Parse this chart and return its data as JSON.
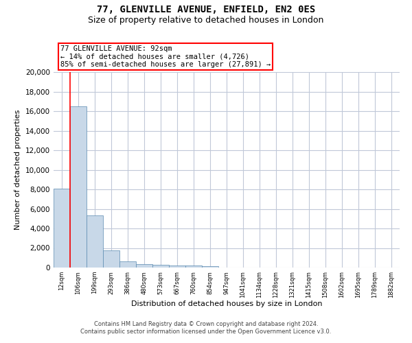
{
  "title_line1": "77, GLENVILLE AVENUE, ENFIELD, EN2 0ES",
  "title_line2": "Size of property relative to detached houses in London",
  "xlabel": "Distribution of detached houses by size in London",
  "ylabel": "Number of detached properties",
  "categories": [
    "12sqm",
    "106sqm",
    "199sqm",
    "293sqm",
    "386sqm",
    "480sqm",
    "573sqm",
    "667sqm",
    "760sqm",
    "854sqm",
    "947sqm",
    "1041sqm",
    "1134sqm",
    "1228sqm",
    "1321sqm",
    "1415sqm",
    "1508sqm",
    "1602sqm",
    "1695sqm",
    "1789sqm",
    "1882sqm"
  ],
  "values": [
    8100,
    16500,
    5300,
    1750,
    650,
    350,
    280,
    200,
    180,
    150,
    0,
    0,
    0,
    0,
    0,
    0,
    0,
    0,
    0,
    0,
    0
  ],
  "bar_color": "#c8d8e8",
  "bar_edge_color": "#5a8ab0",
  "grid_color": "#c0c8d8",
  "background_color": "#ffffff",
  "annotation_line1": "77 GLENVILLE AVENUE: 92sqm",
  "annotation_line2": "← 14% of detached houses are smaller (4,726)",
  "annotation_line3": "85% of semi-detached houses are larger (27,891) →",
  "ylim": [
    0,
    20000
  ],
  "yticks": [
    0,
    2000,
    4000,
    6000,
    8000,
    10000,
    12000,
    14000,
    16000,
    18000,
    20000
  ],
  "footer_line1": "Contains HM Land Registry data © Crown copyright and database right 2024.",
  "footer_line2": "Contains public sector information licensed under the Open Government Licence v3.0.",
  "title_fontsize": 10,
  "subtitle_fontsize": 9,
  "ylabel_fontsize": 8,
  "xlabel_fontsize": 8,
  "ytick_fontsize": 7.5,
  "xtick_fontsize": 6.0,
  "annotation_fontsize": 7.5,
  "footer_fontsize": 6.0
}
